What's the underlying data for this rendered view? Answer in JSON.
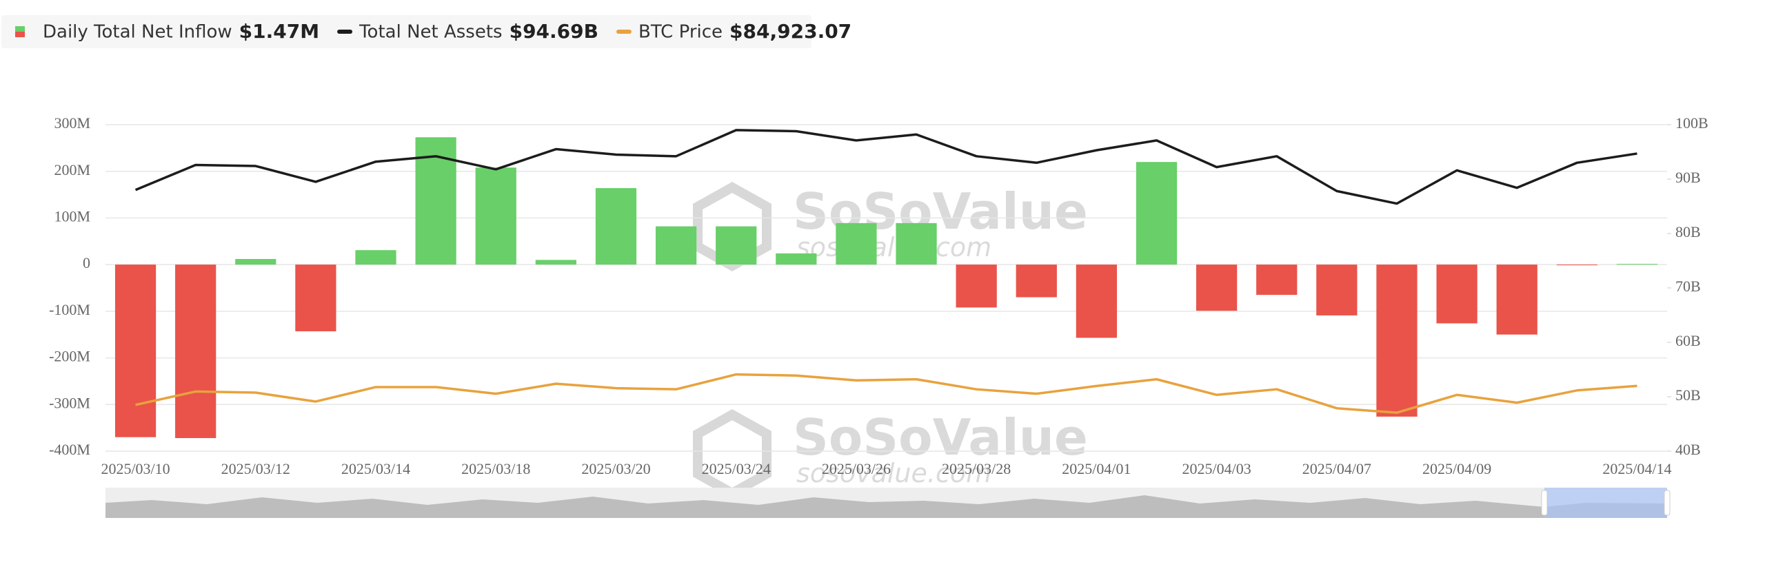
{
  "chart_data": {
    "type": "bar-line",
    "legend": [
      {
        "name": "Daily Total Net Inflow",
        "value_label": "$1.47M"
      },
      {
        "name": "Total Net Assets",
        "value_label": "$94.69B"
      },
      {
        "name": "BTC Price",
        "value_label": "$84,923.07"
      }
    ],
    "watermark": "SoSoValue",
    "watermark_url": "sosovalue.com",
    "categories": [
      "2025/03/10",
      null,
      "2025/03/12",
      null,
      "2025/03/14",
      null,
      "2025/03/18",
      null,
      "2025/03/20",
      null,
      "2025/03/24",
      null,
      "2025/03/26",
      null,
      "2025/03/28",
      null,
      "2025/04/01",
      null,
      "2025/04/03",
      null,
      "2025/04/07",
      null,
      "2025/04/09",
      null,
      null,
      "2025/04/14"
    ],
    "series": [
      {
        "name": "Daily Total Net Inflow",
        "type": "bar",
        "positive_color": "#69cf69",
        "negative_color": "#e9534a",
        "values": [
          -370,
          -372,
          12,
          -143,
          31,
          273,
          208,
          10,
          164,
          82,
          82,
          24,
          89,
          89,
          -92,
          -70,
          -157,
          220,
          -99,
          -65,
          -109,
          -326,
          -126,
          -150,
          -1,
          1.47
        ]
      },
      {
        "name": "Total Net Assets",
        "type": "line",
        "axis": "y2",
        "color": "#1c1c1c",
        "values": [
          88.0,
          92.6,
          92.4,
          89.5,
          93.2,
          94.2,
          91.8,
          95.5,
          94.5,
          94.2,
          99.0,
          98.8,
          97.1,
          98.2,
          94.2,
          93.0,
          95.3,
          97.1,
          92.2,
          94.2,
          87.8,
          85.5,
          91.6,
          88.4,
          93.0,
          94.69
        ]
      },
      {
        "name": "BTC Price",
        "type": "line",
        "axis": "y3",
        "color": "#e8a23d",
        "values": [
          79800,
          83400,
          83100,
          80700,
          84600,
          84600,
          82800,
          85500,
          84300,
          84000,
          88000,
          87700,
          86400,
          86700,
          84000,
          82800,
          84900,
          86700,
          82500,
          84000,
          78900,
          77700,
          82500,
          80400,
          83700,
          84923.07
        ]
      }
    ],
    "ylim": [
      -400,
      300
    ],
    "yticks": [
      {
        "value": -400,
        "label": "-400M"
      },
      {
        "value": -300,
        "label": "-300M"
      },
      {
        "value": -200,
        "label": "-200M"
      },
      {
        "value": -100,
        "label": "-100M"
      },
      0,
      {
        "value": 100,
        "label": "100M"
      },
      {
        "value": 200,
        "label": "200M"
      },
      {
        "value": 300,
        "label": "300M"
      }
    ],
    "y2lim": [
      40,
      100
    ],
    "y2ticks": [
      {
        "value": 40,
        "label": "40B"
      },
      {
        "value": 50,
        "label": "50B"
      },
      {
        "value": 60,
        "label": "60B"
      },
      {
        "value": 70,
        "label": "70B"
      },
      {
        "value": 80,
        "label": "80B"
      },
      {
        "value": 90,
        "label": "90B"
      },
      {
        "value": 100,
        "label": "100B"
      }
    ],
    "y3lim": [
      67350,
      155220
    ],
    "grid": true
  }
}
